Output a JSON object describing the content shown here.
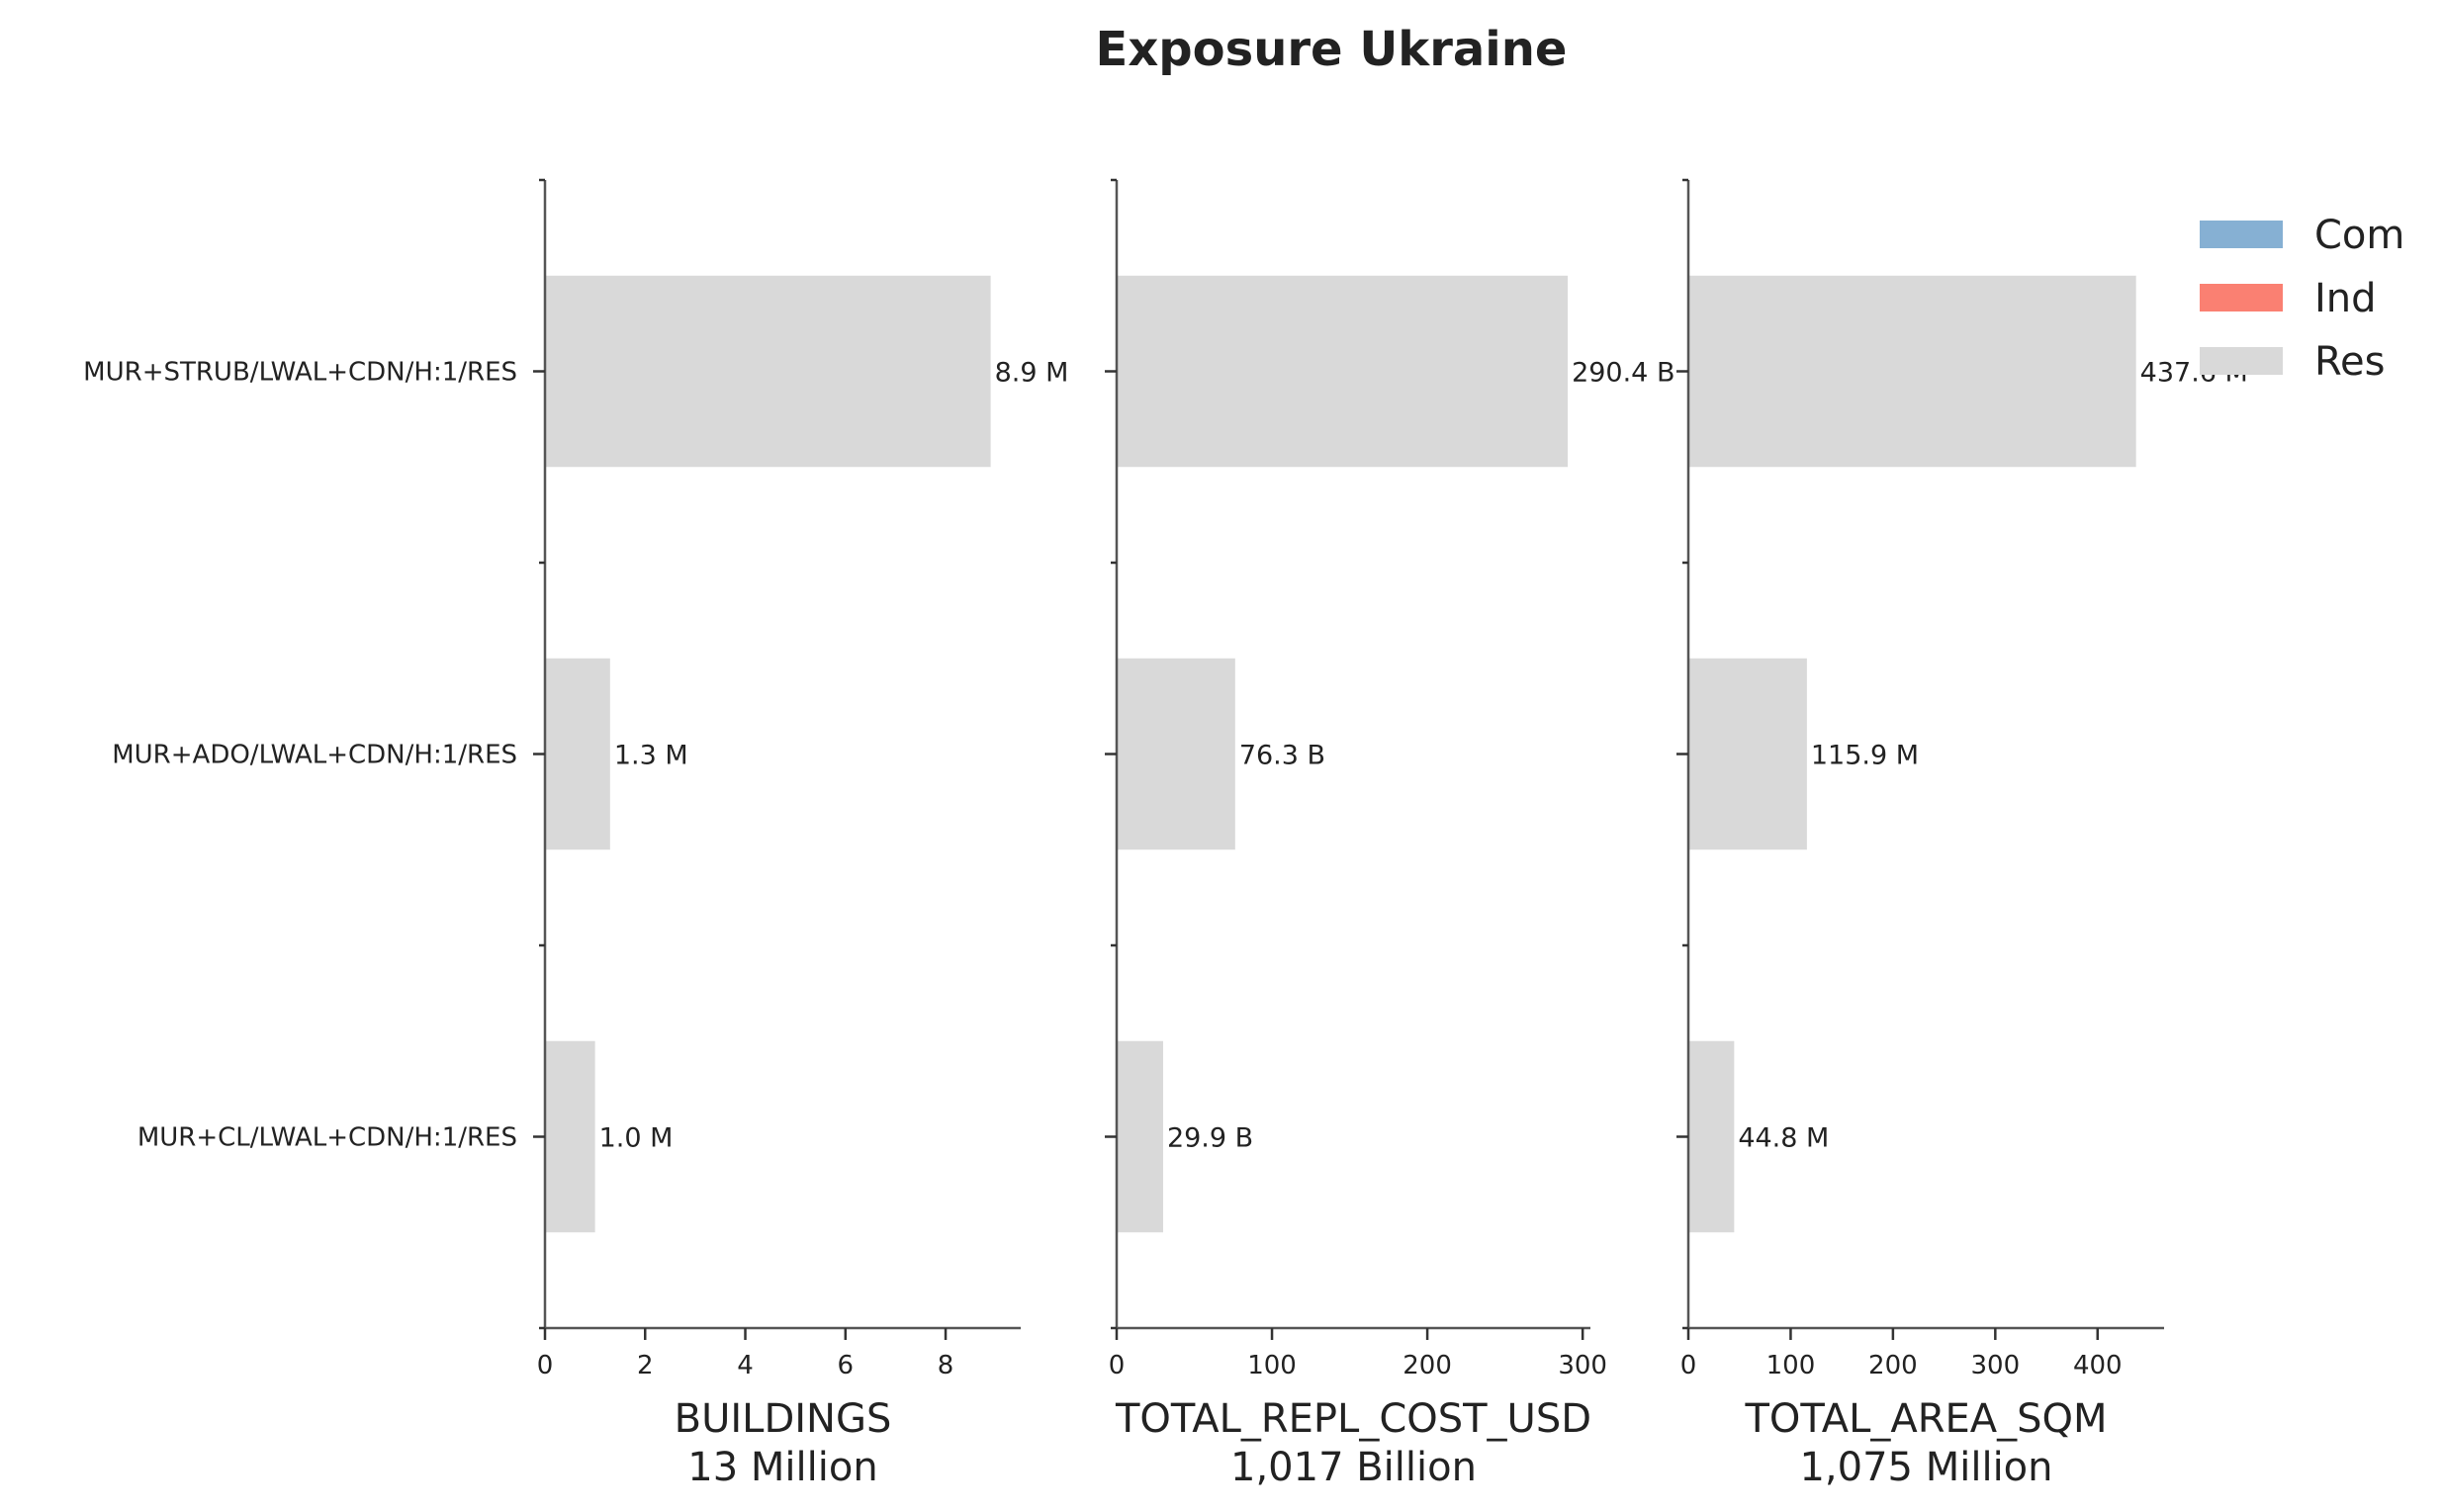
{
  "chart_data": {
    "type": "bar",
    "orientation": "horizontal",
    "title": "Exposure Ukraine",
    "categories": [
      "MUR+STRUB/LWAL+CDN/H:1/RES",
      "MUR+ADO/LWAL+CDN/H:1/RES",
      "MUR+CL/LWAL+CDN/H:1/RES"
    ],
    "legend": {
      "placement": "top-right",
      "entries": [
        {
          "name": "Com",
          "color": "#86b0d3"
        },
        {
          "name": "Ind",
          "color": "#fa8072"
        },
        {
          "name": "Res",
          "color": "#d9d9d9"
        }
      ]
    },
    "grid": false,
    "panels": [
      {
        "xlabel": "BUILDINGS",
        "total_label": "13 Million",
        "series": [
          {
            "name": "Res",
            "values": [
              8.9,
              1.3,
              1.0
            ]
          }
        ],
        "data_labels": [
          "8.9 M",
          "1.3 M",
          "1.0 M"
        ],
        "xlim": [
          0,
          9.5
        ],
        "xticks": [
          0,
          2,
          4,
          6,
          8
        ]
      },
      {
        "xlabel": "TOTAL_REPL_COST_USD",
        "total_label": "1,017 Billion",
        "series": [
          {
            "name": "Res",
            "values": [
              290.4,
              76.3,
              29.9
            ]
          }
        ],
        "data_labels": [
          "290.4 B",
          "76.3 B",
          "29.9 B"
        ],
        "xlim": [
          0,
          305
        ],
        "xticks": [
          0,
          100,
          200,
          300
        ]
      },
      {
        "xlabel": "TOTAL_AREA_SQM",
        "total_label": "1,075 Million",
        "series": [
          {
            "name": "Res",
            "values": [
              437.6,
              115.9,
              44.8
            ]
          }
        ],
        "data_labels": [
          "437.6 M",
          "115.9 M",
          "44.8 M"
        ],
        "xlim": [
          0,
          465
        ],
        "xticks": [
          0,
          100,
          200,
          300,
          400
        ]
      }
    ]
  }
}
